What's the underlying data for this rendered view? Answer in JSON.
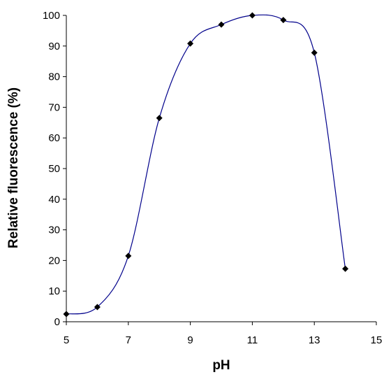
{
  "chart_data": {
    "type": "line",
    "xlabel": "pH",
    "ylabel": "Relative fluorescence (%)",
    "xlim": [
      5,
      15
    ],
    "ylim": [
      0,
      100
    ],
    "x_ticks": [
      5,
      7,
      9,
      11,
      13,
      15
    ],
    "y_ticks": [
      0,
      10,
      20,
      30,
      40,
      50,
      60,
      70,
      80,
      90,
      100
    ],
    "grid": false,
    "legend": "none",
    "smoothed": true,
    "series": [
      {
        "x": [
          5,
          6,
          7,
          8,
          9,
          10,
          11,
          12,
          13,
          14
        ],
        "values": [
          2.5,
          4.8,
          21.5,
          66.5,
          90.8,
          97,
          100,
          98.5,
          87.8,
          17.3
        ],
        "line_color": "#00008B",
        "marker": "diamond",
        "marker_color": "#000000"
      }
    ]
  }
}
